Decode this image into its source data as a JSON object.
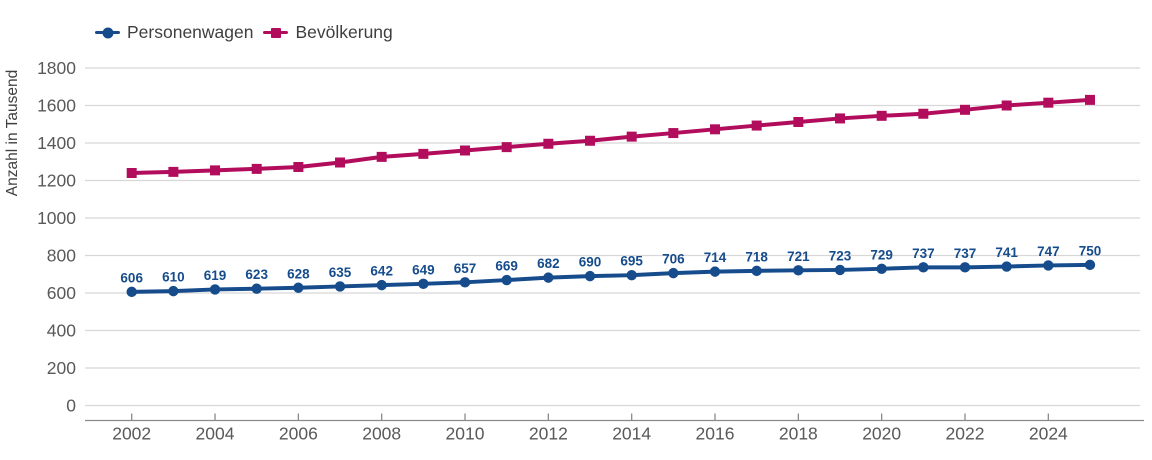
{
  "chart_data": {
    "type": "line",
    "title": "",
    "xlabel": "",
    "ylabel": "Anzahl in Tausend",
    "ylim": [
      0,
      1800
    ],
    "ytick_step": 200,
    "grid": "horizontal",
    "legend_position": "top-left",
    "x": [
      2002,
      2003,
      2004,
      2005,
      2006,
      2007,
      2008,
      2009,
      2010,
      2011,
      2012,
      2013,
      2014,
      2015,
      2016,
      2017,
      2018,
      2019,
      2020,
      2021,
      2022,
      2023,
      2024,
      2025
    ],
    "xtick_labels": [
      "2002",
      "2004",
      "2006",
      "2008",
      "2010",
      "2012",
      "2014",
      "2016",
      "2018",
      "2020",
      "2022",
      "2024"
    ],
    "series": [
      {
        "name": "Personenwagen",
        "color": "#164C8C",
        "marker": "circle",
        "show_data_labels": true,
        "values": [
          606,
          610,
          619,
          623,
          628,
          635,
          642,
          649,
          657,
          669,
          682,
          690,
          695,
          706,
          714,
          718,
          721,
          723,
          729,
          737,
          737,
          741,
          747,
          750
        ]
      },
      {
        "name": "Bevölkerung",
        "color": "#B20D5C",
        "marker": "square",
        "show_data_labels": false,
        "values": [
          1240,
          1246,
          1254,
          1262,
          1272,
          1296,
          1326,
          1342,
          1360,
          1378,
          1396,
          1412,
          1434,
          1453,
          1473,
          1493,
          1512,
          1531,
          1545,
          1556,
          1577,
          1600,
          1615,
          1630
        ]
      }
    ],
    "ytick_values": [
      0,
      200,
      400,
      600,
      800,
      1000,
      1200,
      1400,
      1600,
      1800
    ]
  },
  "colors": {
    "gridline": "#d8d8d8",
    "axis_line": "#8a8a8a",
    "tick_label": "#595959",
    "legend_text": "#3f3f3f",
    "background": "#ffffff"
  }
}
